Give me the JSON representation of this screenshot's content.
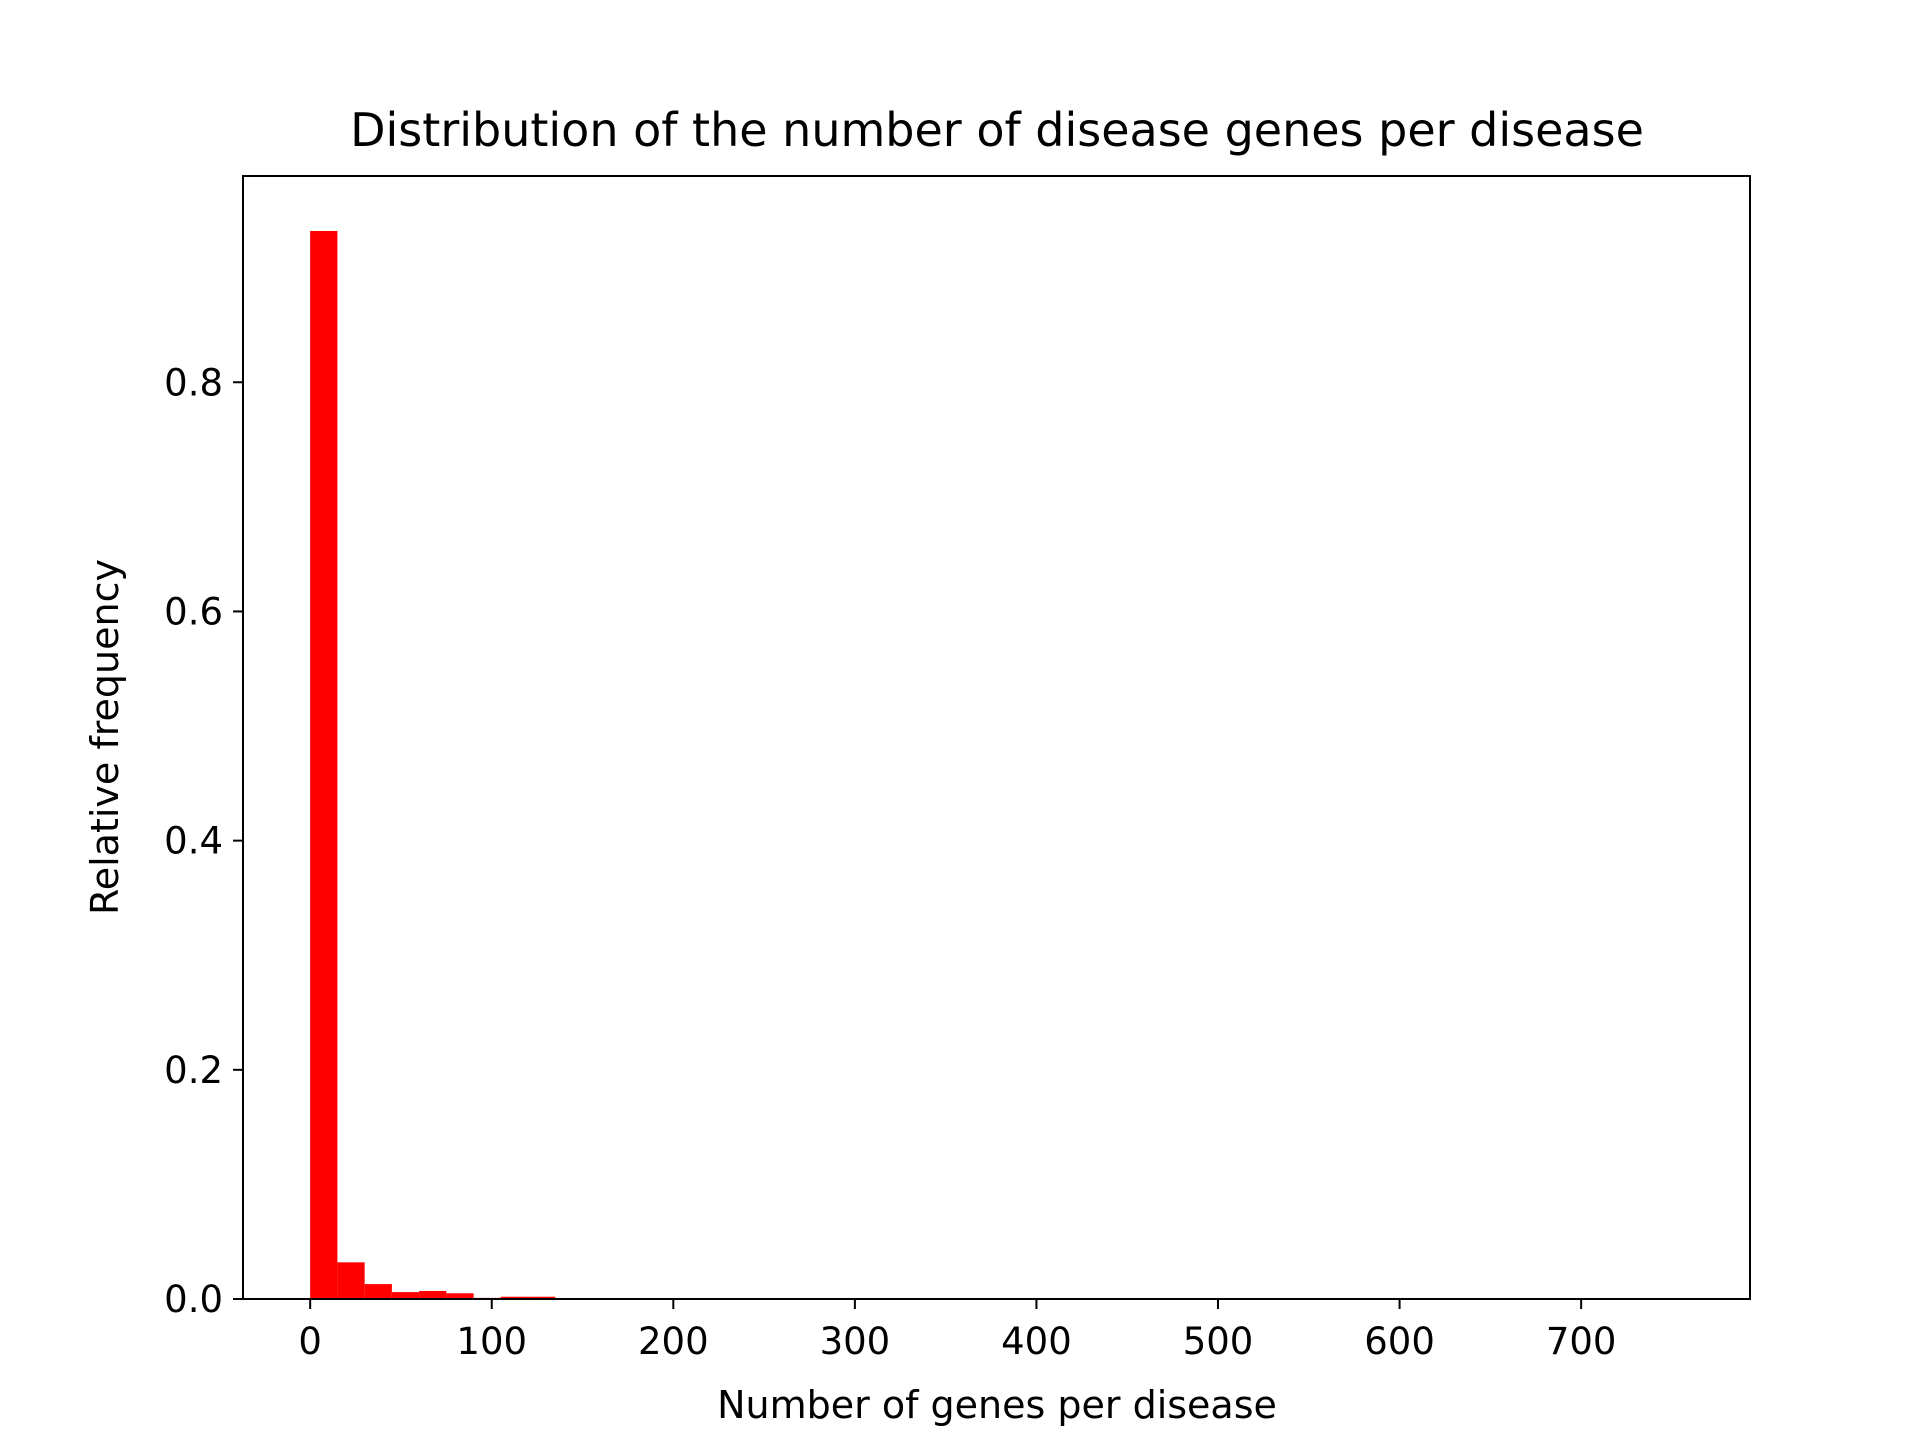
{
  "chart_data": {
    "type": "bar",
    "title": "Distribution of the number of disease genes per disease",
    "xlabel": "Number of genes per disease",
    "ylabel": "Relative frequency",
    "xlim": [
      -37,
      793
    ],
    "ylim": [
      0,
      0.98
    ],
    "xticks": [
      0,
      100,
      200,
      300,
      400,
      500,
      600,
      700
    ],
    "yticks": [
      0.0,
      0.2,
      0.4,
      0.6,
      0.8
    ],
    "grid": false,
    "bar_color": "#ff0000",
    "bins": [
      {
        "x0": 0,
        "x1": 15,
        "value": 0.932
      },
      {
        "x0": 15,
        "x1": 30,
        "value": 0.032
      },
      {
        "x0": 30,
        "x1": 45,
        "value": 0.013
      },
      {
        "x0": 45,
        "x1": 60,
        "value": 0.006
      },
      {
        "x0": 60,
        "x1": 75,
        "value": 0.007
      },
      {
        "x0": 75,
        "x1": 90,
        "value": 0.005
      },
      {
        "x0": 90,
        "x1": 105,
        "value": 0.001
      },
      {
        "x0": 105,
        "x1": 120,
        "value": 0.002
      },
      {
        "x0": 120,
        "x1": 135,
        "value": 0.002
      },
      {
        "x0": 135,
        "x1": 150,
        "value": 0.0005
      }
    ]
  }
}
